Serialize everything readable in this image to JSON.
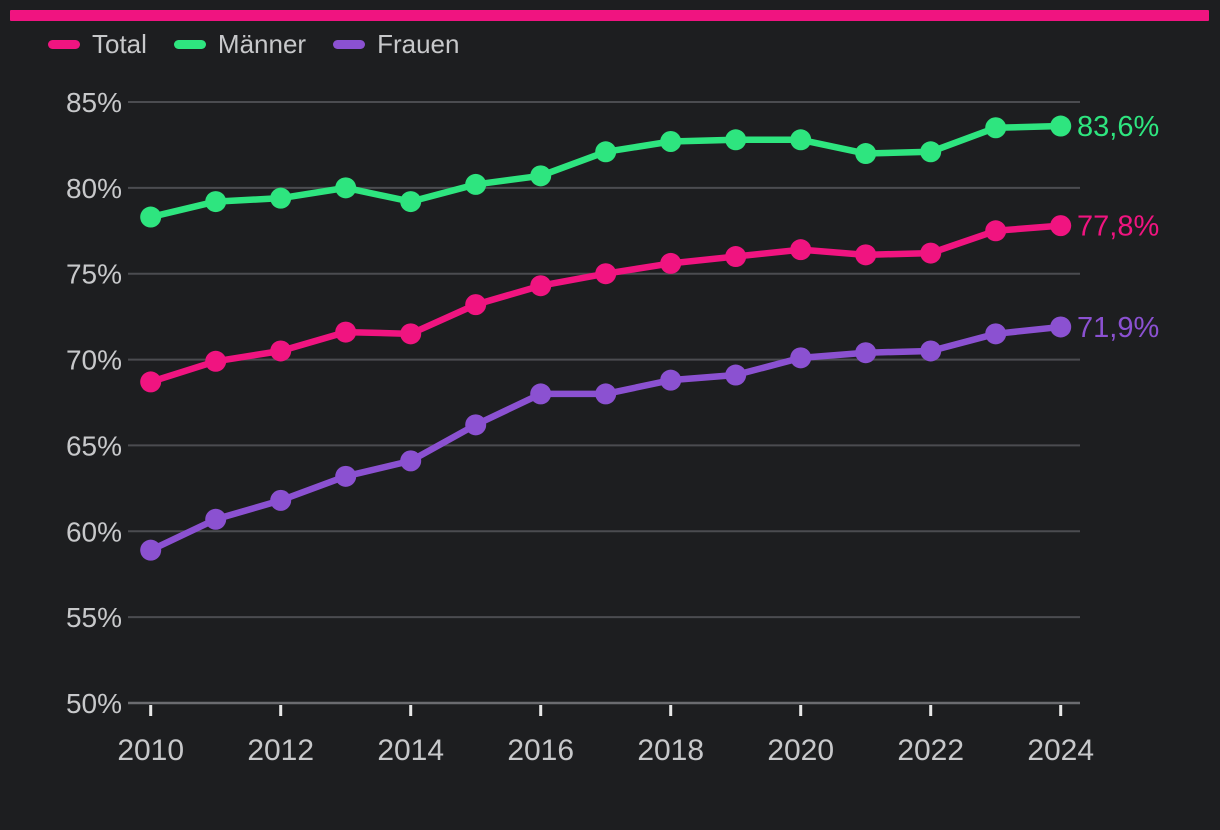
{
  "accent_bar_color": "#f01480",
  "colors": {
    "background": "#1d1e20",
    "grid_line": "#4b4c50",
    "axis_line": "#6b6c70",
    "tick_mark": "#e8e8e8",
    "axis_label_text": "#c7c8ca",
    "legend_text": "#c7c8ca",
    "series_total": "#f01480",
    "series_maenner": "#2ee57f",
    "series_frauen": "#8b51d1"
  },
  "legend": {
    "items": [
      {
        "label": "Total",
        "color": "#f01480"
      },
      {
        "label": "Männer",
        "color": "#2ee57f"
      },
      {
        "label": "Frauen",
        "color": "#8b51d1"
      }
    ]
  },
  "chart_data": {
    "type": "line",
    "title": "",
    "xlabel": "",
    "ylabel": "",
    "x": [
      2010,
      2011,
      2012,
      2013,
      2014,
      2015,
      2016,
      2017,
      2018,
      2019,
      2020,
      2021,
      2022,
      2023,
      2024
    ],
    "series": [
      {
        "name": "Total",
        "color": "#f01480",
        "values": [
          68.7,
          69.9,
          70.5,
          71.6,
          71.5,
          73.2,
          74.3,
          75.0,
          75.6,
          76.0,
          76.4,
          76.1,
          76.2,
          77.5,
          77.8
        ],
        "end_label": "77,8%"
      },
      {
        "name": "Männer",
        "color": "#2ee57f",
        "values": [
          78.3,
          79.2,
          79.4,
          80.0,
          79.2,
          80.2,
          80.7,
          82.1,
          82.7,
          82.8,
          82.8,
          82.0,
          82.1,
          83.5,
          83.6
        ],
        "end_label": "83,6%"
      },
      {
        "name": "Frauen",
        "color": "#8b51d1",
        "values": [
          58.9,
          60.7,
          61.8,
          63.2,
          64.1,
          66.2,
          68.0,
          68.0,
          68.8,
          69.1,
          70.1,
          70.4,
          70.5,
          71.5,
          71.9
        ],
        "end_label": "71,9%"
      }
    ],
    "ylim": [
      50,
      85
    ],
    "yticks": [
      50,
      55,
      60,
      65,
      70,
      75,
      80,
      85
    ],
    "ytick_labels": [
      "50%",
      "55%",
      "60%",
      "65%",
      "70%",
      "75%",
      "80%",
      "85%"
    ],
    "xticks": [
      2010,
      2012,
      2014,
      2016,
      2018,
      2020,
      2022,
      2024
    ],
    "xtick_labels": [
      "2010",
      "2012",
      "2014",
      "2016",
      "2018",
      "2020",
      "2022",
      "2024"
    ],
    "grid": true,
    "legend_position": "top-left"
  }
}
